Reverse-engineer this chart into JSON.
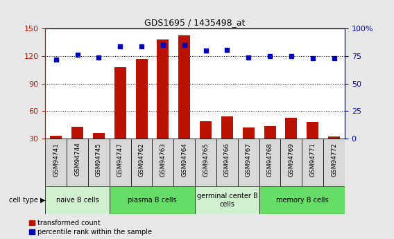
{
  "title": "GDS1695 / 1435498_at",
  "samples": [
    "GSM94741",
    "GSM94744",
    "GSM94745",
    "GSM94747",
    "GSM94762",
    "GSM94763",
    "GSM94764",
    "GSM94765",
    "GSM94766",
    "GSM94767",
    "GSM94768",
    "GSM94769",
    "GSM94771",
    "GSM94772"
  ],
  "transformed_count": [
    33,
    43,
    36,
    108,
    117,
    138,
    143,
    49,
    54,
    42,
    44,
    53,
    48,
    32
  ],
  "percentile_rank": [
    72,
    76,
    74,
    84,
    84,
    85,
    85,
    80,
    81,
    74,
    75,
    75,
    73,
    73
  ],
  "cell_type_groups": [
    {
      "label": "naive B cells",
      "start": 0,
      "end": 3,
      "color": "#d0f0d0"
    },
    {
      "label": "plasma B cells",
      "start": 3,
      "end": 7,
      "color": "#66dd66"
    },
    {
      "label": "germinal center B\ncells",
      "start": 7,
      "end": 10,
      "color": "#d0f0d0"
    },
    {
      "label": "memory B cells",
      "start": 10,
      "end": 14,
      "color": "#66dd66"
    }
  ],
  "ylim_left": [
    30,
    150
  ],
  "ylim_right": [
    0,
    100
  ],
  "bar_color": "#bb1100",
  "dot_color": "#0000bb",
  "bar_width": 0.55,
  "yticks_left": [
    30,
    60,
    90,
    120,
    150
  ],
  "yticks_right": [
    0,
    25,
    50,
    75,
    100
  ],
  "ytick_labels_right": [
    "0",
    "25",
    "50",
    "75",
    "100%"
  ],
  "background_color": "#e8e8e8",
  "plot_bg_color": "#ffffff",
  "sample_box_color": "#d8d8d8"
}
